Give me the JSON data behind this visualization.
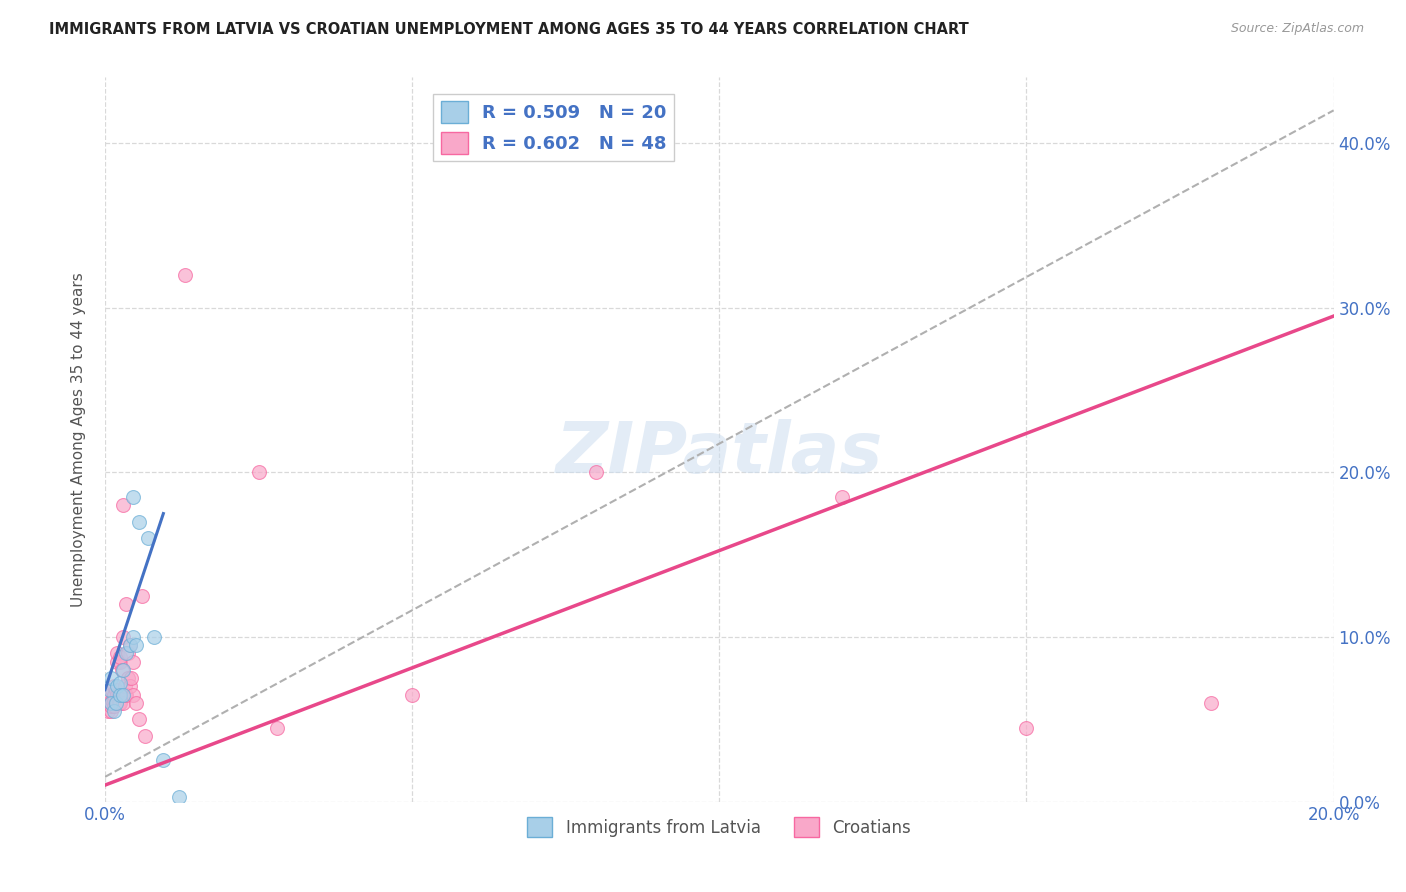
{
  "title": "IMMIGRANTS FROM LATVIA VS CROATIAN UNEMPLOYMENT AMONG AGES 35 TO 44 YEARS CORRELATION CHART",
  "source": "Source: ZipAtlas.com",
  "ylabel": "Unemployment Among Ages 35 to 44 years",
  "xlim": [
    0.0,
    0.2
  ],
  "ylim": [
    0.0,
    0.44
  ],
  "yticks": [
    0.0,
    0.1,
    0.2,
    0.3,
    0.4
  ],
  "xticks": [
    0.0,
    0.05,
    0.1,
    0.15,
    0.2
  ],
  "xtick_labels": [
    "0.0%",
    "",
    "",
    "",
    "20.0%"
  ],
  "blue_scatter": [
    [
      0.0008,
      0.068
    ],
    [
      0.001,
      0.075
    ],
    [
      0.001,
      0.06
    ],
    [
      0.0015,
      0.055
    ],
    [
      0.0018,
      0.06
    ],
    [
      0.002,
      0.07
    ],
    [
      0.0025,
      0.072
    ],
    [
      0.0025,
      0.065
    ],
    [
      0.003,
      0.08
    ],
    [
      0.003,
      0.065
    ],
    [
      0.0035,
      0.09
    ],
    [
      0.004,
      0.095
    ],
    [
      0.0045,
      0.1
    ],
    [
      0.0045,
      0.185
    ],
    [
      0.005,
      0.095
    ],
    [
      0.0055,
      0.17
    ],
    [
      0.007,
      0.16
    ],
    [
      0.008,
      0.1
    ],
    [
      0.0095,
      0.025
    ],
    [
      0.012,
      0.003
    ]
  ],
  "pink_scatter": [
    [
      0.0005,
      0.055
    ],
    [
      0.0005,
      0.06
    ],
    [
      0.0008,
      0.065
    ],
    [
      0.001,
      0.055
    ],
    [
      0.001,
      0.058
    ],
    [
      0.001,
      0.06
    ],
    [
      0.0012,
      0.062
    ],
    [
      0.0012,
      0.068
    ],
    [
      0.0015,
      0.058
    ],
    [
      0.0015,
      0.062
    ],
    [
      0.0015,
      0.065
    ],
    [
      0.0015,
      0.07
    ],
    [
      0.0018,
      0.068
    ],
    [
      0.0018,
      0.06
    ],
    [
      0.002,
      0.065
    ],
    [
      0.002,
      0.085
    ],
    [
      0.002,
      0.09
    ],
    [
      0.0022,
      0.06
    ],
    [
      0.0022,
      0.065
    ],
    [
      0.0025,
      0.085
    ],
    [
      0.0025,
      0.088
    ],
    [
      0.0025,
      0.06
    ],
    [
      0.0028,
      0.065
    ],
    [
      0.0028,
      0.08
    ],
    [
      0.003,
      0.1
    ],
    [
      0.003,
      0.18
    ],
    [
      0.003,
      0.06
    ],
    [
      0.0032,
      0.065
    ],
    [
      0.0032,
      0.07
    ],
    [
      0.0035,
      0.12
    ],
    [
      0.0035,
      0.065
    ],
    [
      0.0038,
      0.075
    ],
    [
      0.0038,
      0.09
    ],
    [
      0.004,
      0.095
    ],
    [
      0.004,
      0.07
    ],
    [
      0.0042,
      0.075
    ],
    [
      0.0045,
      0.085
    ],
    [
      0.0045,
      0.065
    ],
    [
      0.005,
      0.06
    ],
    [
      0.0055,
      0.05
    ],
    [
      0.006,
      0.125
    ],
    [
      0.0065,
      0.04
    ],
    [
      0.013,
      0.32
    ],
    [
      0.025,
      0.2
    ],
    [
      0.028,
      0.045
    ],
    [
      0.05,
      0.065
    ],
    [
      0.08,
      0.2
    ],
    [
      0.12,
      0.185
    ],
    [
      0.15,
      0.045
    ],
    [
      0.18,
      0.06
    ]
  ],
  "blue_line": [
    [
      0.0,
      0.068
    ],
    [
      0.0095,
      0.175
    ]
  ],
  "pink_line": [
    [
      0.0,
      0.01
    ],
    [
      0.2,
      0.295
    ]
  ],
  "grey_dashed_line": [
    [
      0.0,
      0.015
    ],
    [
      0.2,
      0.42
    ]
  ],
  "watermark": "ZIPatlas",
  "bg_color": "#ffffff",
  "scatter_size": 100,
  "tick_label_color": "#4472c4",
  "grid_color": "#d9d9d9"
}
